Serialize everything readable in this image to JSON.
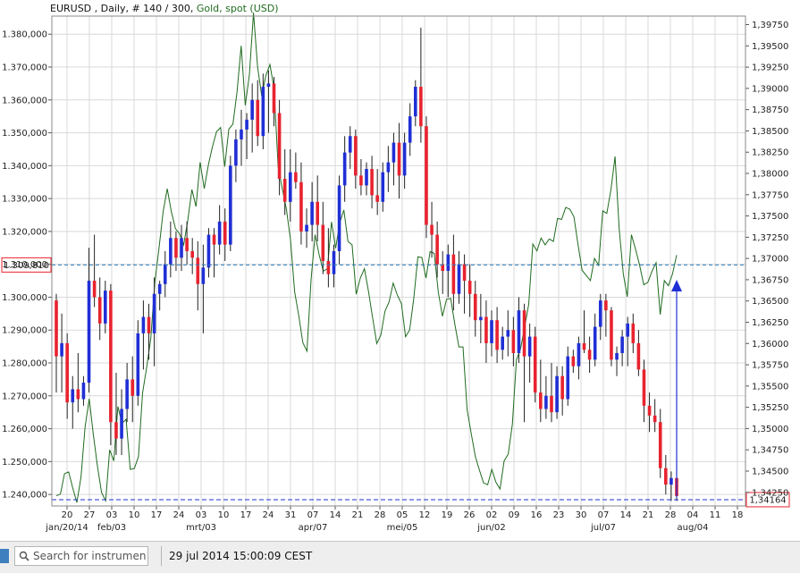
{
  "header": {
    "instrument": "EURUSD",
    "details": " , Daily, # 140 / 300, ",
    "overlay_label": "Gold, spot (USD)"
  },
  "status_bar": {
    "search_placeholder": "Search for instrument",
    "datetime": "29 jul 2014 15:00:09 CEST"
  },
  "colors": {
    "up_candle": "#1f2fd6",
    "down_candle": "#e8232f",
    "wick": "#222222",
    "overlay_line": "#1f6b1f",
    "price_line": "#2e7dbd",
    "low_line": "#1f2fd6",
    "grid": "#d9d9d9"
  },
  "chart_data": {
    "type": "candlestick",
    "left_axis": {
      "label": "EURUSD",
      "ylim": [
        1.2365,
        1.3855
      ],
      "ticks": [
        1.24,
        1.25,
        1.26,
        1.27,
        1.28,
        1.29,
        1.3,
        1.31,
        1.32,
        1.33,
        1.34,
        1.35,
        1.36,
        1.37,
        1.38
      ],
      "tick_labels": [
        "1.240,000",
        "1.250,000",
        "1.260,000",
        "1.270,000",
        "1.280,000",
        "1.290,000",
        "1.300,000",
        "1.310,000",
        "1.320,000",
        "1.330,000",
        "1.340,000",
        "1.350,000",
        "1.360,000",
        "1.370,000",
        "1.380,000"
      ]
    },
    "right_axis": {
      "label": "Gold, spot (USD)",
      "ylim": [
        1.3409,
        1.3985
      ],
      "ticks": [
        1.3425,
        1.345,
        1.3475,
        1.35,
        1.3525,
        1.355,
        1.3575,
        1.36,
        1.3625,
        1.365,
        1.3675,
        1.37,
        1.3725,
        1.375,
        1.3775,
        1.38,
        1.3825,
        1.385,
        1.3875,
        1.39,
        1.3925,
        1.395,
        1.3975
      ],
      "tick_labels": [
        "1,34250",
        "1,34500",
        "1,34750",
        "1,35000",
        "1,35250",
        "1,35500",
        "1,35750",
        "1,36000",
        "1,36250",
        "1,36500",
        "1,36750",
        "1,37000",
        "1,37250",
        "1,37500",
        "1,37750",
        "1,38000",
        "1,38250",
        "1,38500",
        "1,38750",
        "1,39000",
        "1,39250",
        "1,39500",
        "1,39750"
      ]
    },
    "x_axis": {
      "tick_labels": [
        "20",
        "27",
        "03",
        "10",
        "17",
        "24",
        "03",
        "10",
        "17",
        "24",
        "31",
        "07",
        "14",
        "21",
        "28",
        "05",
        "12",
        "19",
        "26",
        "02",
        "09",
        "16",
        "23",
        "30",
        "07",
        "14",
        "21",
        "28",
        "04",
        "11",
        "18"
      ],
      "month_labels": [
        {
          "label": "jan/20/14",
          "at_tick": 0
        },
        {
          "label": "feb/03",
          "at_tick": 2
        },
        {
          "label": "mrt/03",
          "at_tick": 6
        },
        {
          "label": "apr/07",
          "at_tick": 11
        },
        {
          "label": "mei/05",
          "at_tick": 15
        },
        {
          "label": "jun/02",
          "at_tick": 19
        },
        {
          "label": "jul/07",
          "at_tick": 24
        },
        {
          "label": "aug/04",
          "at_tick": 28
        }
      ]
    },
    "current_price": {
      "value": 1.30981,
      "label": "1.309,810"
    },
    "last_level": {
      "value": 1.34164,
      "label": "1,34164"
    },
    "grid": true,
    "candles": [
      [
        1.299,
        1.301,
        1.271,
        1.282
      ],
      [
        1.282,
        1.295,
        1.271,
        1.286
      ],
      [
        1.286,
        1.289,
        1.263,
        1.268
      ],
      [
        1.268,
        1.276,
        1.26,
        1.272
      ],
      [
        1.272,
        1.283,
        1.265,
        1.269
      ],
      [
        1.269,
        1.276,
        1.267,
        1.274
      ],
      [
        1.274,
        1.315,
        1.271,
        1.305
      ],
      [
        1.305,
        1.319,
        1.297,
        1.3
      ],
      [
        1.3,
        1.306,
        1.287,
        1.292
      ],
      [
        1.292,
        1.305,
        1.289,
        1.302
      ],
      [
        1.302,
        1.304,
        1.255,
        1.262
      ],
      [
        1.262,
        1.277,
        1.252,
        1.257
      ],
      [
        1.257,
        1.272,
        1.252,
        1.266
      ],
      [
        1.266,
        1.28,
        1.262,
        1.275
      ],
      [
        1.275,
        1.282,
        1.262,
        1.27
      ],
      [
        1.27,
        1.293,
        1.267,
        1.289
      ],
      [
        1.289,
        1.299,
        1.278,
        1.294
      ],
      [
        1.294,
        1.298,
        1.281,
        1.289
      ],
      [
        1.289,
        1.306,
        1.279,
        1.301
      ],
      [
        1.301,
        1.305,
        1.296,
        1.304
      ],
      [
        1.304,
        1.314,
        1.3,
        1.31
      ],
      [
        1.31,
        1.323,
        1.306,
        1.318
      ],
      [
        1.318,
        1.32,
        1.308,
        1.312
      ],
      [
        1.312,
        1.322,
        1.308,
        1.318
      ],
      [
        1.318,
        1.323,
        1.31,
        1.314
      ],
      [
        1.314,
        1.318,
        1.307,
        1.312
      ],
      [
        1.312,
        1.317,
        1.296,
        1.304
      ],
      [
        1.304,
        1.316,
        1.289,
        1.309
      ],
      [
        1.309,
        1.321,
        1.306,
        1.319
      ],
      [
        1.319,
        1.321,
        1.306,
        1.316
      ],
      [
        1.316,
        1.328,
        1.313,
        1.323
      ],
      [
        1.323,
        1.327,
        1.311,
        1.316
      ],
      [
        1.316,
        1.343,
        1.314,
        1.34
      ],
      [
        1.34,
        1.351,
        1.335,
        1.348
      ],
      [
        1.348,
        1.357,
        1.34,
        1.351
      ],
      [
        1.351,
        1.356,
        1.342,
        1.354
      ],
      [
        1.354,
        1.365,
        1.344,
        1.36
      ],
      [
        1.36,
        1.366,
        1.346,
        1.349
      ],
      [
        1.349,
        1.368,
        1.345,
        1.364
      ],
      [
        1.364,
        1.369,
        1.35,
        1.365
      ],
      [
        1.365,
        1.367,
        1.352,
        1.356
      ],
      [
        1.356,
        1.36,
        1.331,
        1.336
      ],
      [
        1.336,
        1.345,
        1.325,
        1.329
      ],
      [
        1.329,
        1.345,
        1.323,
        1.338
      ],
      [
        1.338,
        1.344,
        1.333,
        1.335
      ],
      [
        1.335,
        1.341,
        1.316,
        1.32
      ],
      [
        1.32,
        1.327,
        1.315,
        1.322
      ],
      [
        1.322,
        1.335,
        1.317,
        1.329
      ],
      [
        1.329,
        1.337,
        1.317,
        1.322
      ],
      [
        1.322,
        1.329,
        1.307,
        1.311
      ],
      [
        1.311,
        1.321,
        1.303,
        1.307
      ],
      [
        1.307,
        1.316,
        1.303,
        1.314
      ],
      [
        1.314,
        1.337,
        1.31,
        1.334
      ],
      [
        1.334,
        1.349,
        1.329,
        1.344
      ],
      [
        1.344,
        1.352,
        1.339,
        1.349
      ],
      [
        1.349,
        1.351,
        1.333,
        1.337
      ],
      [
        1.337,
        1.342,
        1.331,
        1.334
      ],
      [
        1.334,
        1.341,
        1.331,
        1.339
      ],
      [
        1.339,
        1.343,
        1.327,
        1.331
      ],
      [
        1.331,
        1.339,
        1.325,
        1.329
      ],
      [
        1.329,
        1.341,
        1.326,
        1.338
      ],
      [
        1.338,
        1.346,
        1.332,
        1.341
      ],
      [
        1.341,
        1.35,
        1.334,
        1.347
      ],
      [
        1.347,
        1.353,
        1.33,
        1.337
      ],
      [
        1.337,
        1.35,
        1.333,
        1.347
      ],
      [
        1.347,
        1.359,
        1.343,
        1.355
      ],
      [
        1.355,
        1.366,
        1.352,
        1.364
      ],
      [
        1.364,
        1.382,
        1.347,
        1.352
      ],
      [
        1.352,
        1.355,
        1.318,
        1.322
      ],
      [
        1.322,
        1.329,
        1.312,
        1.319
      ],
      [
        1.319,
        1.323,
        1.306,
        1.31
      ],
      [
        1.31,
        1.314,
        1.301,
        1.308
      ],
      [
        1.308,
        1.316,
        1.3,
        1.313
      ],
      [
        1.313,
        1.319,
        1.296,
        1.301
      ],
      [
        1.301,
        1.314,
        1.298,
        1.31
      ],
      [
        1.31,
        1.313,
        1.295,
        1.305
      ],
      [
        1.305,
        1.31,
        1.294,
        1.301
      ],
      [
        1.301,
        1.305,
        1.288,
        1.293
      ],
      [
        1.293,
        1.301,
        1.286,
        1.294
      ],
      [
        1.294,
        1.299,
        1.28,
        1.286
      ],
      [
        1.286,
        1.296,
        1.282,
        1.293
      ],
      [
        1.293,
        1.297,
        1.28,
        1.284
      ],
      [
        1.284,
        1.291,
        1.281,
        1.288
      ],
      [
        1.288,
        1.296,
        1.282,
        1.29
      ],
      [
        1.29,
        1.294,
        1.279,
        1.283
      ],
      [
        1.283,
        1.3,
        1.28,
        1.296
      ],
      [
        1.296,
        1.298,
        1.262,
        1.282
      ],
      [
        1.282,
        1.292,
        1.274,
        1.288
      ],
      [
        1.288,
        1.291,
        1.268,
        1.271
      ],
      [
        1.271,
        1.281,
        1.262,
        1.266
      ],
      [
        1.266,
        1.276,
        1.263,
        1.27
      ],
      [
        1.27,
        1.28,
        1.262,
        1.265
      ],
      [
        1.265,
        1.279,
        1.263,
        1.276
      ],
      [
        1.276,
        1.279,
        1.264,
        1.269
      ],
      [
        1.269,
        1.285,
        1.267,
        1.282
      ],
      [
        1.282,
        1.284,
        1.277,
        1.279
      ],
      [
        1.279,
        1.288,
        1.275,
        1.286
      ],
      [
        1.286,
        1.296,
        1.283,
        1.284
      ],
      [
        1.284,
        1.288,
        1.277,
        1.281
      ],
      [
        1.281,
        1.295,
        1.279,
        1.291
      ],
      [
        1.291,
        1.301,
        1.287,
        1.299
      ],
      [
        1.299,
        1.301,
        1.288,
        1.296
      ],
      [
        1.296,
        1.297,
        1.279,
        1.281
      ],
      [
        1.281,
        1.285,
        1.276,
        1.283
      ],
      [
        1.283,
        1.29,
        1.279,
        1.288
      ],
      [
        1.288,
        1.294,
        1.279,
        1.292
      ],
      [
        1.292,
        1.295,
        1.283,
        1.286
      ],
      [
        1.286,
        1.29,
        1.276,
        1.278
      ],
      [
        1.278,
        1.281,
        1.262,
        1.267
      ],
      [
        1.267,
        1.271,
        1.259,
        1.264
      ],
      [
        1.264,
        1.269,
        1.259,
        1.262
      ],
      [
        1.262,
        1.266,
        1.245,
        1.248
      ],
      [
        1.248,
        1.252,
        1.24,
        1.243
      ],
      [
        1.243,
        1.247,
        1.238,
        1.245
      ],
      [
        1.245,
        1.246,
        1.238,
        1.2395
      ]
    ],
    "overlay_series": {
      "name": "Gold, spot (USD)",
      "values": [
        1.3421,
        1.3423,
        1.3447,
        1.3449,
        1.343,
        1.3413,
        1.3443,
        1.3502,
        1.3535,
        1.3493,
        1.3456,
        1.3425,
        1.3415,
        1.3475,
        1.3462,
        1.3526,
        1.3506,
        1.3511,
        1.3452,
        1.3453,
        1.3467,
        1.3542,
        1.3572,
        1.3606,
        1.3673,
        1.3712,
        1.3755,
        1.3782,
        1.3755,
        1.3735,
        1.3729,
        1.3716,
        1.3745,
        1.3781,
        1.3761,
        1.3813,
        1.3782,
        1.381,
        1.3831,
        1.3849,
        1.3854,
        1.3808,
        1.3852,
        1.3858,
        1.3896,
        1.395,
        1.388,
        1.3916,
        1.3989,
        1.3925,
        1.3891,
        1.3915,
        1.3928,
        1.39,
        1.3807,
        1.3782,
        1.3758,
        1.3722,
        1.3661,
        1.3633,
        1.3601,
        1.3591,
        1.3675,
        1.3728,
        1.3704,
        1.3685,
        1.3688,
        1.3743,
        1.3712,
        1.3742,
        1.3757,
        1.372,
        1.3716,
        1.3658,
        1.3677,
        1.3688,
        1.3661,
        1.363,
        1.36,
        1.361,
        1.3638,
        1.3649,
        1.3671,
        1.3657,
        1.3647,
        1.3608,
        1.3616,
        1.3653,
        1.3702,
        1.3701,
        1.3677,
        1.3708,
        1.3706,
        1.366,
        1.3632,
        1.3652,
        1.3653,
        1.3623,
        1.3596,
        1.3596,
        1.3522,
        1.3494,
        1.3467,
        1.3451,
        1.3436,
        1.3434,
        1.3452,
        1.3437,
        1.3429,
        1.3462,
        1.347,
        1.3505,
        1.3581,
        1.3594,
        1.3619,
        1.3646,
        1.3717,
        1.3709,
        1.3724,
        1.3716,
        1.3723,
        1.372,
        1.3747,
        1.3746,
        1.376,
        1.3758,
        1.3749,
        1.3716,
        1.3686,
        1.368,
        1.3674,
        1.37,
        1.3692,
        1.3756,
        1.3753,
        1.3781,
        1.382,
        1.3735,
        1.3682,
        1.3655,
        1.3728,
        1.3711,
        1.3692,
        1.3669,
        1.3672,
        1.3685,
        1.3695,
        1.3634,
        1.3674,
        1.3668,
        1.3682,
        1.3704
      ]
    }
  }
}
